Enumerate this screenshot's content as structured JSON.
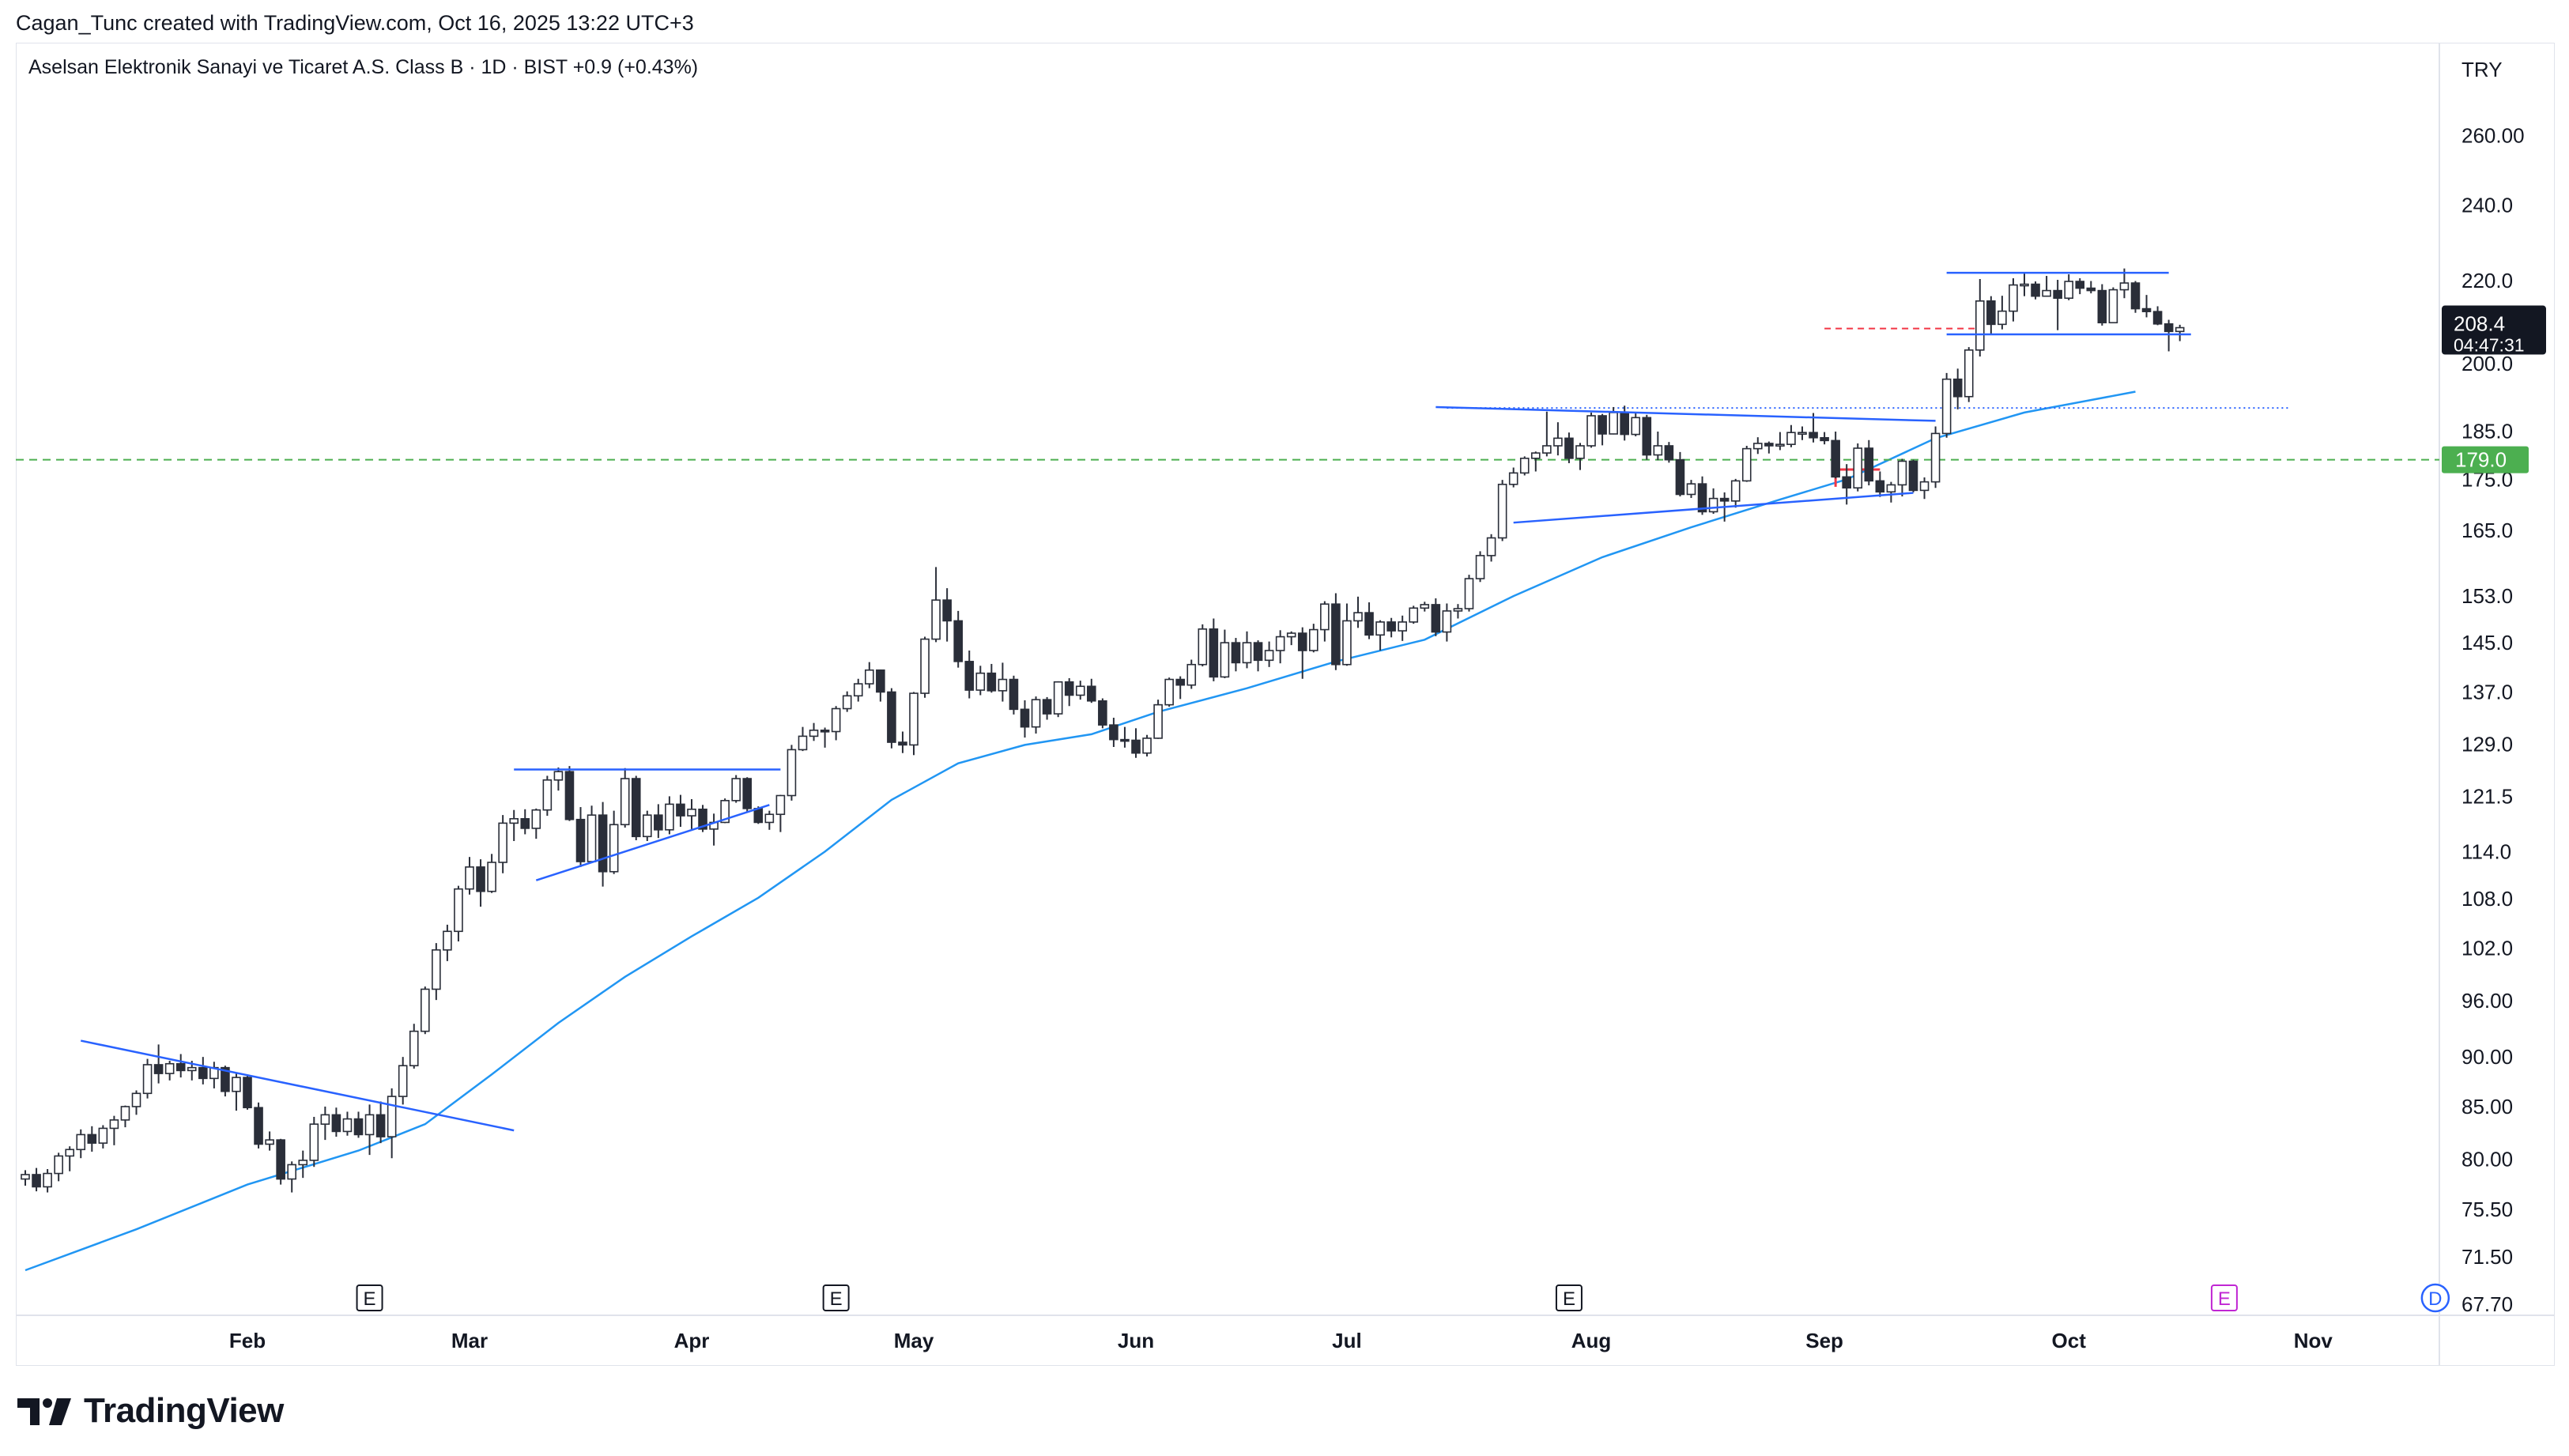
{
  "header": {
    "attribution": "Cagan_Tunc created with TradingView.com, Oct 16, 2025 13:22 UTC+3"
  },
  "brand": {
    "name": "TradingView"
  },
  "chart_data": {
    "type": "candlestick",
    "title": "Aselsan Elektronik Sanayi ve Ticaret A.S. Class B · 1D · BIST  +0.9 (+0.43%)",
    "currency": "TRY",
    "scale": "log",
    "ylim": [
      67.7,
      270
    ],
    "price_ticks": [
      "260.00",
      "240.0",
      "220.0",
      "200.0",
      "185.0",
      "175.0",
      "165.0",
      "153.0",
      "145.0",
      "137.0",
      "129.0",
      "121.5",
      "114.0",
      "108.0",
      "102.0",
      "96.00",
      "90.00",
      "85.00",
      "80.00",
      "75.50",
      "71.50",
      "67.70"
    ],
    "month_labels": [
      "Feb",
      "Mar",
      "Apr",
      "May",
      "Jun",
      "Jul",
      "Aug",
      "Sep",
      "Oct",
      "Nov"
    ],
    "month_start_index": [
      20,
      40,
      60,
      80,
      100,
      119,
      141,
      162,
      184,
      206
    ],
    "last_price": {
      "value": "208.4",
      "countdown": "04:47:31"
    },
    "horizontal_level": {
      "value": 179.0,
      "label": "179.0",
      "color": "#4caf50"
    },
    "earnings_markers": [
      {
        "index": 31,
        "label": "E"
      },
      {
        "index": 73,
        "label": "E"
      },
      {
        "index": 139,
        "label": "E"
      },
      {
        "index": 198,
        "label": "E",
        "future": true
      }
    ],
    "dividend_marker": {
      "index": 217,
      "label": "D"
    },
    "moving_average": {
      "color": "#2196f3",
      "points": [
        [
          0,
          70.4
        ],
        [
          10,
          73.8
        ],
        [
          20,
          77.7
        ],
        [
          30,
          80.8
        ],
        [
          36,
          83.3
        ],
        [
          42,
          88.2
        ],
        [
          48,
          93.6
        ],
        [
          54,
          98.7
        ],
        [
          60,
          103.4
        ],
        [
          66,
          108.1
        ],
        [
          72,
          114.0
        ],
        [
          78,
          121.0
        ],
        [
          84,
          126.2
        ],
        [
          90,
          128.9
        ],
        [
          96,
          130.5
        ],
        [
          102,
          133.9
        ],
        [
          110,
          137.6
        ],
        [
          118,
          141.9
        ],
        [
          126,
          145.5
        ],
        [
          134,
          153.0
        ],
        [
          142,
          160.0
        ],
        [
          150,
          165.6
        ],
        [
          158,
          171.0
        ],
        [
          164,
          175.0
        ],
        [
          172,
          183.5
        ],
        [
          180,
          189.0
        ],
        [
          190,
          193.6
        ]
      ]
    },
    "trendlines": [
      {
        "from": [
          5,
          91.7
        ],
        "to": [
          44,
          82.7
        ],
        "color": "#2962ff"
      },
      {
        "from": [
          44,
          125.3
        ],
        "to": [
          68,
          125.3
        ],
        "color": "#2962ff"
      },
      {
        "from": [
          46,
          110.3
        ],
        "to": [
          67,
          120.3
        ],
        "color": "#2962ff"
      },
      {
        "from": [
          127,
          190.2
        ],
        "to": [
          172,
          187.2
        ],
        "color": "#2962ff"
      },
      {
        "from": [
          134,
          166.5
        ],
        "to": [
          170,
          172.3
        ],
        "color": "#2962ff"
      },
      {
        "from": [
          173,
          222.0
        ],
        "to": [
          193,
          222.0
        ],
        "color": "#2962ff"
      },
      {
        "from": [
          173,
          206.8
        ],
        "to": [
          195,
          206.8
        ],
        "color": "#2962ff"
      }
    ],
    "dotted_level": {
      "from": 128,
      "to": 204,
      "value": 190.0
    },
    "red_dashed_level": {
      "from": 162,
      "to": 176,
      "value": 208.2
    },
    "candles": [
      [
        78.2,
        79.0,
        77.6,
        78.6
      ],
      [
        78.6,
        79.2,
        77.1,
        77.5
      ],
      [
        77.5,
        79.1,
        77.0,
        78.7
      ],
      [
        78.7,
        80.6,
        78.0,
        80.3
      ],
      [
        80.3,
        81.2,
        78.9,
        80.9
      ],
      [
        80.9,
        82.8,
        80.1,
        82.3
      ],
      [
        82.3,
        83.1,
        80.7,
        81.5
      ],
      [
        81.5,
        83.2,
        81.0,
        82.9
      ],
      [
        82.9,
        84.1,
        81.3,
        83.7
      ],
      [
        83.7,
        85.1,
        83.0,
        85.0
      ],
      [
        85.0,
        86.6,
        84.2,
        86.3
      ],
      [
        86.3,
        89.8,
        85.8,
        89.2
      ],
      [
        89.2,
        91.3,
        87.3,
        88.3
      ],
      [
        88.3,
        89.6,
        87.6,
        89.3
      ],
      [
        89.3,
        90.3,
        87.9,
        88.6
      ],
      [
        88.6,
        89.6,
        87.6,
        88.9
      ],
      [
        88.9,
        90.0,
        87.2,
        87.8
      ],
      [
        87.8,
        89.5,
        86.8,
        88.9
      ],
      [
        88.9,
        89.1,
        86.0,
        86.5
      ],
      [
        86.5,
        88.3,
        84.6,
        87.9
      ],
      [
        87.9,
        88.2,
        84.7,
        84.9
      ],
      [
        84.9,
        85.4,
        81.0,
        81.4
      ],
      [
        81.4,
        82.6,
        80.8,
        81.8
      ],
      [
        81.8,
        81.9,
        77.7,
        78.2
      ],
      [
        78.2,
        79.8,
        77.0,
        79.5
      ],
      [
        79.5,
        80.8,
        78.3,
        79.9
      ],
      [
        79.9,
        84.0,
        79.3,
        83.3
      ],
      [
        83.3,
        85.0,
        81.8,
        84.2
      ],
      [
        84.2,
        84.9,
        82.1,
        82.6
      ],
      [
        82.6,
        84.5,
        82.2,
        83.8
      ],
      [
        83.8,
        84.5,
        82.0,
        82.3
      ],
      [
        82.3,
        85.2,
        80.4,
        84.2
      ],
      [
        84.2,
        85.5,
        81.5,
        82.1
      ],
      [
        82.1,
        86.8,
        80.1,
        86.0
      ],
      [
        86.0,
        90.0,
        85.2,
        89.1
      ],
      [
        89.1,
        93.5,
        88.8,
        92.7
      ],
      [
        92.7,
        97.6,
        92.4,
        97.3
      ],
      [
        97.3,
        102.6,
        96.1,
        101.8
      ],
      [
        101.8,
        104.8,
        100.5,
        104.0
      ],
      [
        104.0,
        109.6,
        102.8,
        109.2
      ],
      [
        109.2,
        113.3,
        108.5,
        112.0
      ],
      [
        112.0,
        113.0,
        107.0,
        108.9
      ],
      [
        108.9,
        113.7,
        108.7,
        112.6
      ],
      [
        112.6,
        118.9,
        111.2,
        117.8
      ],
      [
        117.8,
        119.6,
        115.4,
        118.4
      ],
      [
        118.4,
        119.7,
        116.3,
        117.1
      ],
      [
        117.1,
        119.8,
        115.7,
        119.6
      ],
      [
        119.6,
        124.4,
        118.8,
        123.8
      ],
      [
        123.8,
        125.6,
        122.3,
        125.0
      ],
      [
        125.0,
        125.8,
        118.1,
        118.3
      ],
      [
        118.3,
        120.0,
        112.0,
        112.7
      ],
      [
        112.7,
        120.2,
        112.5,
        118.9
      ],
      [
        118.9,
        120.7,
        109.5,
        111.4
      ],
      [
        111.4,
        119.5,
        111.1,
        117.6
      ],
      [
        117.6,
        125.5,
        117.2,
        124.0
      ],
      [
        124.0,
        124.4,
        115.5,
        116.0
      ],
      [
        116.0,
        119.5,
        115.4,
        118.9
      ],
      [
        118.9,
        120.4,
        115.8,
        116.9
      ],
      [
        116.9,
        121.5,
        116.3,
        120.4
      ],
      [
        120.4,
        121.7,
        117.3,
        118.8
      ],
      [
        118.8,
        121.1,
        117.0,
        119.7
      ],
      [
        119.7,
        120.3,
        116.6,
        117.0
      ],
      [
        117.0,
        119.1,
        114.8,
        117.9
      ],
      [
        117.9,
        121.2,
        117.8,
        120.9
      ],
      [
        120.9,
        124.5,
        120.6,
        124.0
      ],
      [
        124.0,
        124.2,
        119.4,
        119.8
      ],
      [
        119.8,
        120.1,
        117.7,
        117.9
      ],
      [
        117.9,
        119.5,
        116.9,
        119.0
      ],
      [
        119.0,
        121.7,
        116.6,
        121.6
      ],
      [
        121.6,
        128.9,
        120.9,
        128.2
      ],
      [
        128.2,
        131.6,
        128.0,
        130.2
      ],
      [
        130.2,
        132.2,
        129.5,
        131.1
      ],
      [
        131.1,
        131.5,
        128.5,
        130.9
      ],
      [
        130.9,
        134.8,
        129.6,
        134.4
      ],
      [
        134.4,
        137.1,
        133.9,
        136.4
      ],
      [
        136.4,
        139.1,
        135.5,
        138.3
      ],
      [
        138.3,
        141.8,
        137.6,
        140.5
      ],
      [
        140.5,
        140.6,
        135.5,
        137.0
      ],
      [
        137.0,
        137.6,
        128.4,
        129.3
      ],
      [
        129.3,
        130.9,
        127.7,
        128.9
      ],
      [
        128.9,
        137.0,
        127.4,
        136.8
      ],
      [
        136.8,
        146.0,
        136.1,
        145.6
      ],
      [
        145.6,
        158.2,
        145.1,
        152.3
      ],
      [
        152.3,
        154.4,
        145.2,
        148.7
      ],
      [
        148.7,
        150.4,
        140.9,
        141.9
      ],
      [
        141.9,
        143.7,
        136.0,
        137.3
      ],
      [
        137.3,
        141.2,
        136.5,
        140.0
      ],
      [
        140.0,
        141.5,
        136.9,
        137.2
      ],
      [
        137.2,
        141.7,
        135.5,
        139.0
      ],
      [
        139.0,
        139.6,
        133.5,
        134.3
      ],
      [
        134.3,
        135.7,
        130.0,
        131.6
      ],
      [
        131.6,
        136.3,
        130.6,
        135.8
      ],
      [
        135.8,
        136.2,
        132.7,
        133.6
      ],
      [
        133.6,
        138.7,
        133.1,
        138.6
      ],
      [
        138.6,
        139.2,
        134.8,
        136.5
      ],
      [
        136.5,
        138.8,
        135.8,
        137.9
      ],
      [
        137.9,
        139.1,
        135.3,
        135.6
      ],
      [
        135.6,
        136.0,
        131.4,
        131.9
      ],
      [
        131.9,
        133.0,
        128.6,
        129.7
      ],
      [
        129.7,
        131.6,
        128.5,
        129.6
      ],
      [
        129.6,
        131.4,
        127.0,
        127.7
      ],
      [
        127.7,
        130.4,
        127.2,
        129.9
      ],
      [
        129.9,
        135.8,
        129.8,
        135.0
      ],
      [
        135.0,
        139.3,
        134.7,
        139.0
      ],
      [
        139.0,
        139.5,
        135.9,
        138.1
      ],
      [
        138.1,
        142.2,
        137.5,
        141.4
      ],
      [
        141.4,
        148.1,
        141.1,
        147.3
      ],
      [
        147.3,
        149.1,
        138.7,
        139.4
      ],
      [
        139.4,
        147.2,
        139.2,
        145.0
      ],
      [
        145.0,
        145.8,
        140.3,
        141.7
      ],
      [
        141.7,
        146.9,
        140.8,
        145.0
      ],
      [
        145.0,
        145.4,
        140.3,
        142.1
      ],
      [
        142.1,
        145.2,
        141.0,
        143.7
      ],
      [
        143.7,
        147.1,
        141.6,
        146.0
      ],
      [
        146.0,
        146.9,
        144.6,
        146.6
      ],
      [
        146.6,
        147.6,
        139.1,
        143.7
      ],
      [
        143.7,
        148.2,
        143.4,
        147.2
      ],
      [
        147.2,
        152.1,
        145.2,
        151.6
      ],
      [
        151.6,
        153.5,
        140.5,
        141.4
      ],
      [
        141.4,
        151.7,
        141.2,
        148.7
      ],
      [
        148.7,
        152.9,
        147.5,
        150.1
      ],
      [
        150.1,
        151.9,
        145.6,
        146.3
      ],
      [
        146.3,
        148.8,
        143.7,
        148.5
      ],
      [
        148.5,
        149.2,
        145.9,
        147.0
      ],
      [
        147.0,
        149.6,
        145.3,
        148.5
      ],
      [
        148.5,
        151.3,
        148.2,
        150.9
      ],
      [
        150.9,
        152.0,
        150.3,
        151.5
      ],
      [
        151.5,
        152.6,
        146.1,
        146.8
      ],
      [
        146.8,
        151.7,
        145.2,
        150.4
      ],
      [
        150.4,
        151.6,
        149.1,
        150.8
      ],
      [
        150.8,
        156.8,
        150.3,
        156.1
      ],
      [
        156.1,
        161.1,
        155.5,
        160.3
      ],
      [
        160.3,
        164.3,
        159.2,
        163.6
      ],
      [
        163.6,
        174.9,
        163.0,
        174.0
      ],
      [
        174.0,
        177.4,
        173.4,
        176.3
      ],
      [
        176.3,
        179.7,
        175.8,
        179.3
      ],
      [
        179.3,
        180.7,
        176.6,
        180.4
      ],
      [
        180.4,
        189.2,
        179.7,
        181.9
      ],
      [
        181.9,
        186.9,
        179.9,
        183.5
      ],
      [
        183.5,
        184.7,
        178.3,
        179.3
      ],
      [
        179.3,
        182.5,
        176.9,
        181.9
      ],
      [
        181.9,
        189.0,
        181.5,
        188.3
      ],
      [
        188.3,
        188.7,
        182.0,
        184.4
      ],
      [
        184.4,
        190.2,
        184.3,
        189.0
      ],
      [
        189.0,
        190.5,
        183.0,
        184.3
      ],
      [
        184.3,
        188.9,
        183.9,
        187.9
      ],
      [
        187.9,
        188.5,
        179.0,
        180.0
      ],
      [
        180.0,
        184.9,
        178.9,
        181.9
      ],
      [
        181.9,
        182.7,
        178.4,
        179.0
      ],
      [
        179.0,
        180.6,
        171.6,
        172.0
      ],
      [
        172.0,
        174.9,
        171.3,
        174.1
      ],
      [
        174.1,
        175.6,
        168.0,
        168.6
      ],
      [
        168.6,
        173.2,
        168.2,
        171.2
      ],
      [
        171.2,
        172.4,
        166.7,
        170.7
      ],
      [
        170.7,
        175.1,
        169.4,
        174.7
      ],
      [
        174.7,
        181.9,
        174.5,
        181.3
      ],
      [
        181.3,
        183.7,
        180.2,
        182.4
      ],
      [
        182.4,
        182.8,
        180.3,
        181.9
      ],
      [
        181.9,
        184.8,
        181.0,
        182.2
      ],
      [
        182.2,
        186.3,
        181.6,
        184.7
      ],
      [
        184.7,
        186.0,
        183.1,
        184.7
      ],
      [
        184.7,
        188.9,
        182.6,
        183.6
      ],
      [
        183.6,
        184.8,
        182.2,
        183.0
      ],
      [
        183.0,
        184.9,
        175.2,
        175.5
      ],
      [
        175.5,
        178.1,
        170.0,
        173.3
      ],
      [
        173.3,
        182.4,
        172.6,
        181.4
      ],
      [
        181.4,
        183.1,
        173.8,
        174.7
      ],
      [
        174.7,
        176.6,
        171.5,
        172.5
      ],
      [
        172.5,
        174.5,
        170.4,
        173.9
      ],
      [
        173.9,
        179.2,
        171.6,
        178.7
      ],
      [
        178.7,
        179.0,
        172.4,
        172.8
      ],
      [
        172.8,
        175.4,
        171.1,
        174.5
      ],
      [
        174.5,
        186.0,
        173.3,
        184.5
      ],
      [
        184.5,
        197.8,
        183.6,
        196.4
      ],
      [
        196.4,
        198.8,
        189.7,
        192.5
      ],
      [
        192.5,
        203.8,
        191.3,
        203.1
      ],
      [
        203.1,
        220.4,
        201.6,
        214.9
      ],
      [
        214.9,
        216.1,
        206.7,
        209.2
      ],
      [
        209.2,
        216.2,
        208.0,
        212.4
      ],
      [
        212.4,
        220.6,
        209.9,
        218.9
      ],
      [
        218.9,
        222.0,
        216.1,
        219.1
      ],
      [
        219.1,
        219.8,
        215.3,
        216.1
      ],
      [
        216.1,
        221.2,
        216.0,
        217.5
      ],
      [
        217.5,
        220.2,
        207.8,
        215.6
      ],
      [
        215.6,
        221.6,
        215.1,
        219.8
      ],
      [
        219.8,
        220.6,
        216.6,
        218.1
      ],
      [
        218.1,
        219.9,
        216.8,
        217.5
      ],
      [
        217.5,
        219.1,
        208.9,
        209.6
      ],
      [
        209.6,
        218.3,
        209.5,
        217.7
      ],
      [
        217.7,
        223.1,
        215.6,
        219.4
      ],
      [
        219.4,
        219.9,
        212.0,
        213.0
      ],
      [
        213.0,
        216.4,
        210.9,
        212.3
      ],
      [
        212.3,
        213.6,
        209.0,
        209.3
      ],
      [
        209.3,
        210.3,
        202.8,
        207.5
      ],
      [
        207.5,
        209.1,
        205.2,
        208.4
      ]
    ]
  }
}
